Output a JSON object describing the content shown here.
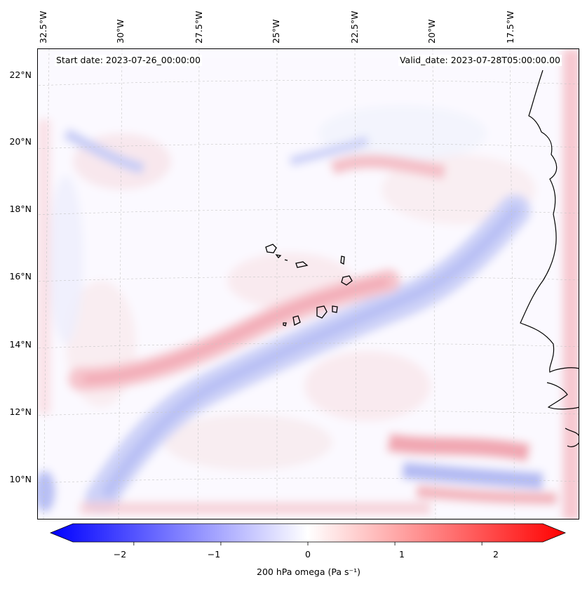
{
  "header": {
    "start_date": "Start date: 2023-07-26_00:00:00",
    "valid_date": "Valid_date: 2023-07-28T05:00:00.00"
  },
  "longitude_labels": [
    "32.5°W",
    "30°W",
    "27.5°W",
    "25°W",
    "22.5°W",
    "20°W",
    "17.5°W"
  ],
  "latitude_labels": [
    "22°N",
    "20°N",
    "18°N",
    "16°N",
    "14°N",
    "12°N",
    "10°N"
  ],
  "colorbar": {
    "label": "200 hPa omega (Pa s⁻¹)",
    "ticks": [
      "−2",
      "−1",
      "0",
      "1",
      "2"
    ],
    "tick_values": [
      -2,
      -1,
      0,
      1,
      2
    ],
    "range": [
      -2.7,
      2.7
    ],
    "extend": "both",
    "colormap": "bwr",
    "low_color": "#0000ff",
    "mid_color": "#ffffff",
    "high_color": "#ff0000"
  },
  "map": {
    "projection": "lambert",
    "lon_range": [
      -33,
      -15.5
    ],
    "lat_range": [
      9,
      22.6
    ],
    "coastline_color": "#000000",
    "gridline_color": "#bbbbbb",
    "gridlines": "on"
  }
}
